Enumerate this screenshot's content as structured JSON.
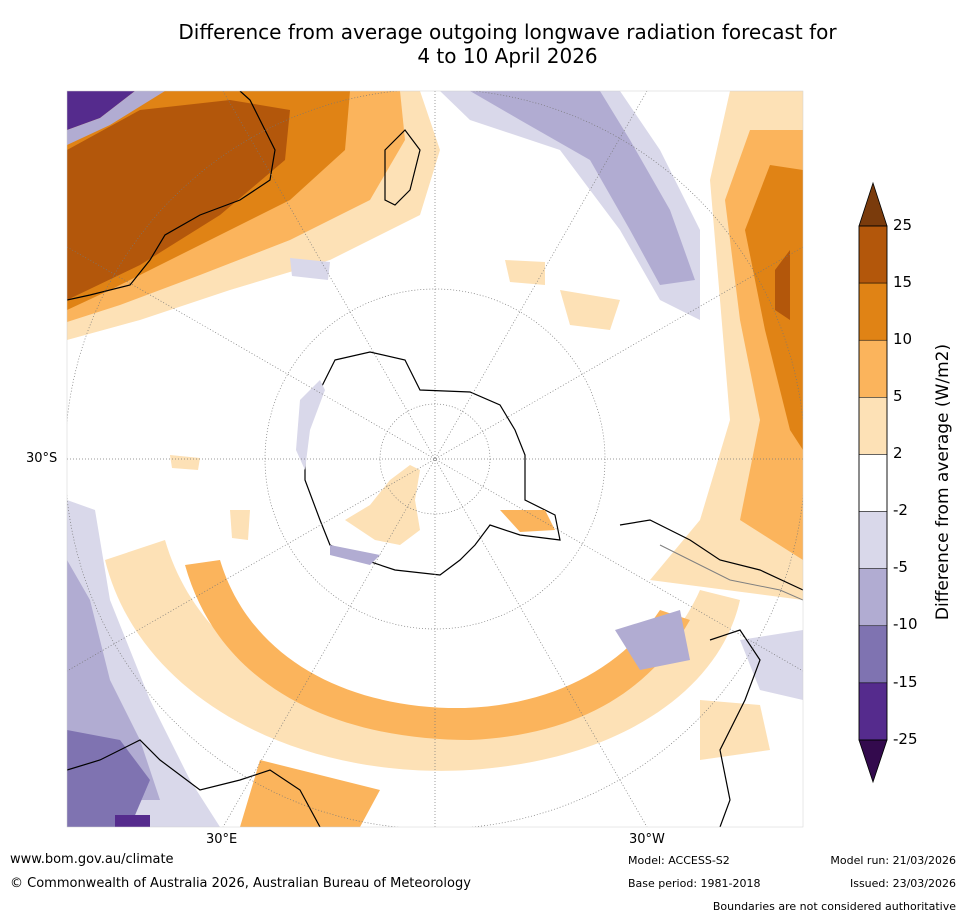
{
  "title": {
    "line1": "Difference from average outgoing longwave radiation forecast for",
    "line2": "4 to 10 April 2026"
  },
  "map_labels": {
    "lat_30s": "30°S",
    "lon_30e": "30°E",
    "lon_30w": "30°W"
  },
  "colorbar": {
    "title": "Difference from average (W/m2)",
    "ticks": [
      "25",
      "15",
      "10",
      "5",
      "2",
      "-2",
      "-5",
      "-10",
      "-15",
      "-25"
    ],
    "colors": {
      "above_25": "#7a3b0c",
      "15_to_25": "#b3570b",
      "10_to_15": "#e08315",
      "5_to_10": "#fbb45c",
      "2_to_5": "#fde1b6",
      "neutral": "#ffffff",
      "m2_to_m5": "#d9d8ea",
      "m5_to_m10": "#b1acd2",
      "m10_to_m15": "#7f73b1",
      "m15_to_m25": "#552b8d",
      "below_m25": "#330a4d"
    }
  },
  "footer": {
    "website": "www.bom.gov.au/climate",
    "copyright": "© Commonwealth of Australia 2026, Australian Bureau of Meteorology",
    "model": "Model: ACCESS-S2",
    "base_period": "Base period: 1981-2018",
    "model_run": "Model run: 21/03/2026",
    "issued": "Issued: 23/03/2026",
    "disclaimer": "Boundaries are not considered authoritative"
  }
}
